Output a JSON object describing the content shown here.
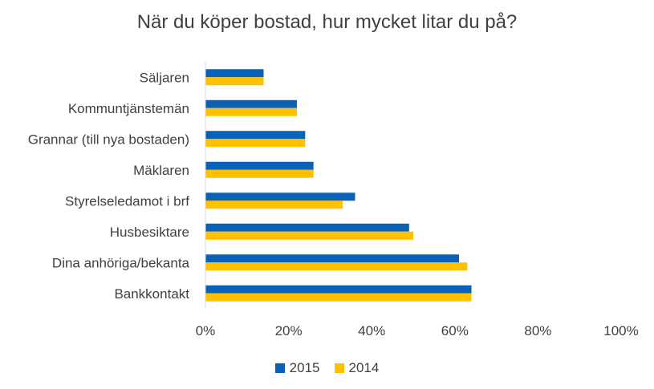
{
  "chart_data": {
    "type": "bar",
    "orientation": "horizontal",
    "title": "När du köper bostad, hur mycket litar du på?",
    "categories": [
      "Säljaren",
      "Kommuntjänstemän",
      "Grannar (till nya bostaden)",
      "Mäklaren",
      "Styrelseledamot i brf",
      "Husbesiktare",
      "Dina anhöriga/bekanta",
      "Bankkontakt"
    ],
    "series": [
      {
        "name": "2015",
        "color": "#0a62b8",
        "values": [
          14,
          22,
          24,
          26,
          36,
          49,
          61,
          64
        ]
      },
      {
        "name": "2014",
        "color": "#ffc000",
        "values": [
          14,
          22,
          24,
          26,
          33,
          50,
          63,
          64
        ]
      }
    ],
    "xlim": [
      0,
      100
    ],
    "xticks": [
      "0%",
      "20%",
      "40%",
      "60%",
      "80%",
      "100%"
    ],
    "xlabel": "",
    "ylabel": "",
    "legend_position": "bottom",
    "grid": false
  }
}
